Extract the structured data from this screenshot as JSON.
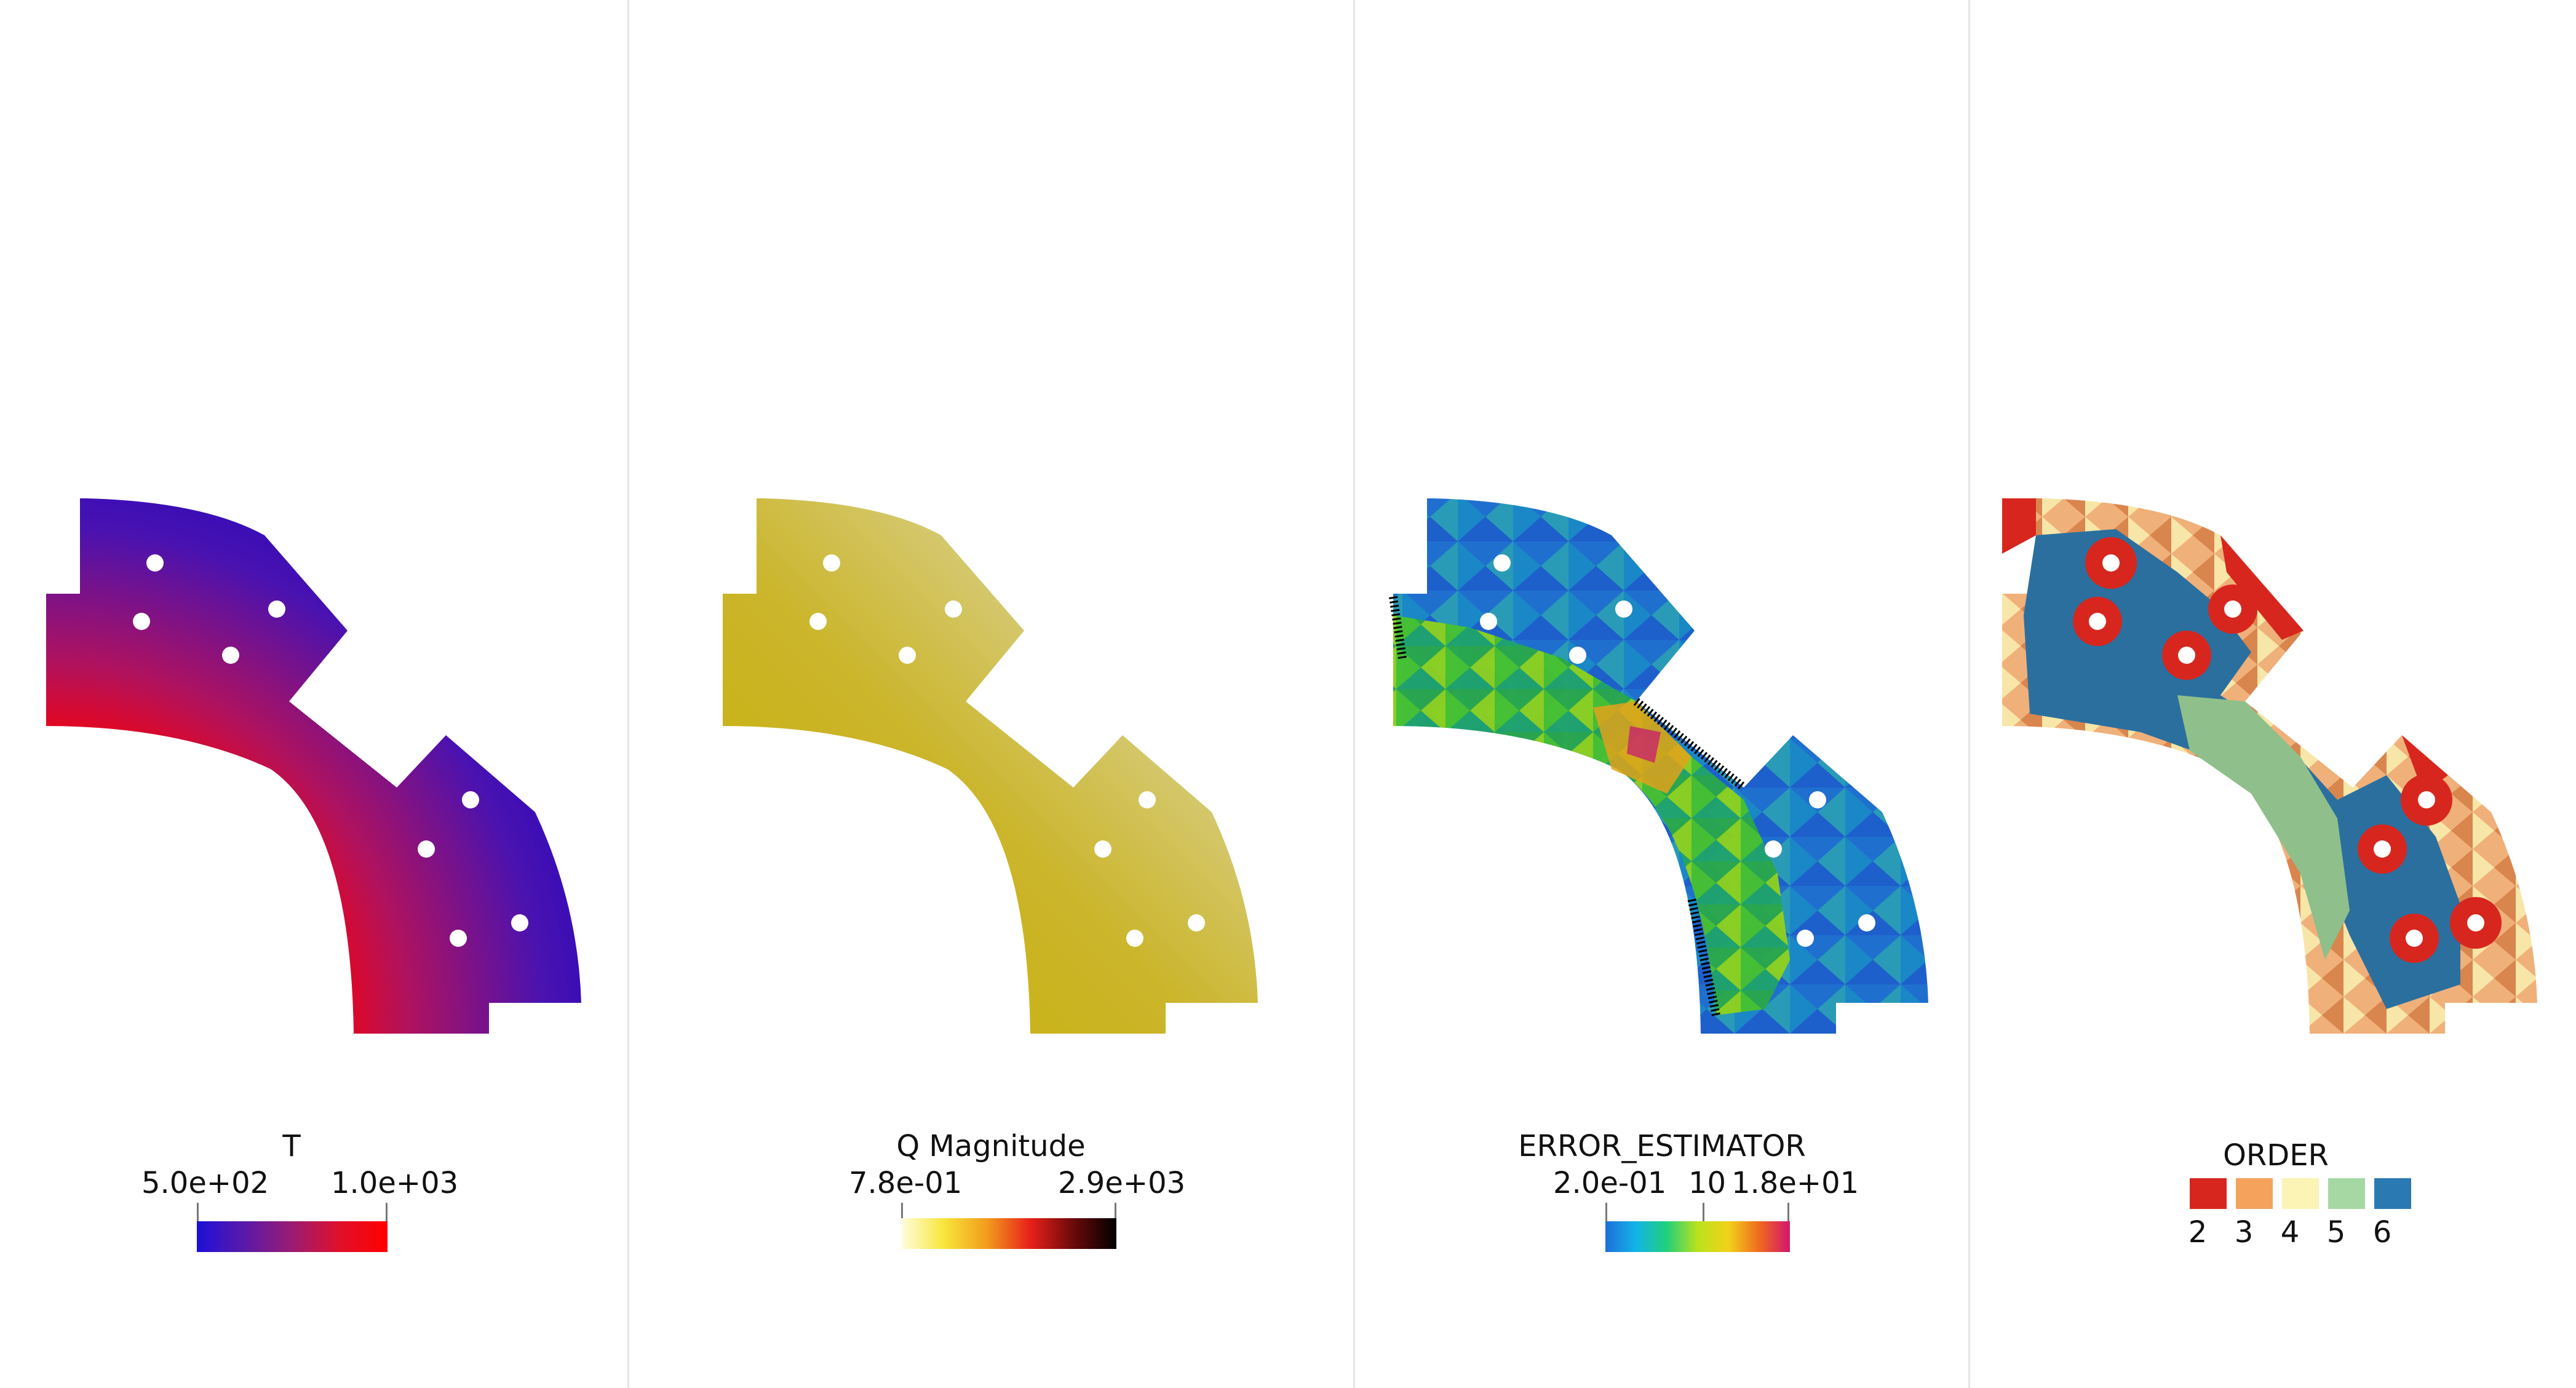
{
  "panels": [
    {
      "legend": {
        "title": "T",
        "min_label": "5.0e+02",
        "max_label": "1.0e+03",
        "colormap": [
          "#1d0fd8",
          "#5a1aa8",
          "#9a1c72",
          "#e0102a",
          "#ff0000"
        ]
      }
    },
    {
      "legend": {
        "title": "Q Magnitude",
        "min_label": "7.8e-01",
        "max_label": "2.9e+03",
        "colormap": [
          "#fffde0",
          "#f7e63a",
          "#f29b1c",
          "#e8201a",
          "#6a0a0a",
          "#000000"
        ]
      }
    },
    {
      "legend": {
        "title": "ERROR_ESTIMATOR",
        "min_label": "2.0e-01",
        "mid_label": "10",
        "max_label": "1.8e+01",
        "colormap": [
          "#1e6fd8",
          "#12b4e8",
          "#21d07a",
          "#b9e21c",
          "#f2d21a",
          "#f06a1d",
          "#d3156c"
        ]
      }
    },
    {
      "legend": {
        "title": "ORDER",
        "swatches": [
          {
            "label": "2",
            "color": "#d7261e"
          },
          {
            "label": "3",
            "color": "#f5a25d"
          },
          {
            "label": "4",
            "color": "#fbf4b5"
          },
          {
            "label": "5",
            "color": "#a6d8a3"
          },
          {
            "label": "6",
            "color": "#2b79b3"
          }
        ]
      }
    }
  ]
}
